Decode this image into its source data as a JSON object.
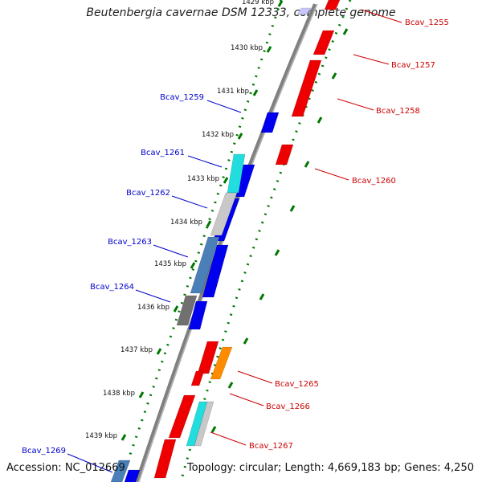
{
  "title": "Beutenbergia cavernae DSM 12333, complete genome",
  "footer": {
    "accession": "Accession: NC_012669",
    "summary": "Topology: circular; Length: 4,669,183 bp; Genes: 4,250"
  },
  "ticks": [
    "1429 kbp",
    "1430 kbp",
    "1431 kbp",
    "1432 kbp",
    "1433 kbp",
    "1434 kbp",
    "1435 kbp",
    "1436 kbp",
    "1437 kbp",
    "1438 kbp",
    "1439 kbp"
  ],
  "genes_left": [
    {
      "id": "Bcav_1259",
      "color": "#0000cc"
    },
    {
      "id": "Bcav_1261",
      "color": "#0000cc"
    },
    {
      "id": "Bcav_1262",
      "color": "#0000cc"
    },
    {
      "id": "Bcav_1263",
      "color": "#0000cc"
    },
    {
      "id": "Bcav_1264",
      "color": "#0000cc"
    },
    {
      "id": "Bcav_1269",
      "color": "#0000cc"
    }
  ],
  "genes_right": [
    {
      "id": "Bcav_1255",
      "color": "#cc0000"
    },
    {
      "id": "Bcav_1257",
      "color": "#cc0000"
    },
    {
      "id": "Bcav_1258",
      "color": "#cc0000"
    },
    {
      "id": "Bcav_1260",
      "color": "#cc0000"
    },
    {
      "id": "Bcav_1265",
      "color": "#cc0000"
    },
    {
      "id": "Bcav_1266",
      "color": "#cc0000"
    },
    {
      "id": "Bcav_1267",
      "color": "#cc0000"
    }
  ],
  "colors": {
    "backbone": "#808080",
    "forward_cds": "#0000ee",
    "reverse_cds": "#ee0000",
    "dots_green": "#007700",
    "label_left": "#0000cc",
    "label_right": "#cc0000"
  }
}
